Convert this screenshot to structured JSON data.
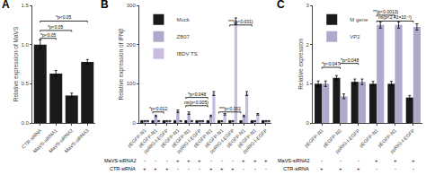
{
  "chart_data": [
    {
      "type": "bar",
      "title": "A",
      "ylabel": "Relative expression of MaVS",
      "categories": [
        "CTR-siRNA",
        "MaVS-siRNA1",
        "MaVS-siRNA2",
        "MaVS-siRNA3"
      ],
      "values": [
        1.0,
        0.63,
        0.35,
        0.78
      ],
      "errors": [
        0.06,
        0.04,
        0.03,
        0.03
      ],
      "color": "#1a1a1a",
      "ylim": [
        0,
        1.5
      ],
      "yticks": [
        {
          "value": 0,
          "label": "0.0"
        },
        0.5,
        {
          "value": 1,
          "label": "1.0"
        },
        1.5
      ],
      "grid": false,
      "annotations": [
        {
          "x1": 0,
          "x2": 1,
          "y": 1.08,
          "text": "*p<0.05"
        },
        {
          "x1": 0,
          "x2": 2,
          "y": 1.18,
          "text": "*p<0.05"
        },
        {
          "x1": 0,
          "x2": 3,
          "y": 1.3,
          "text": "*p<0.05"
        }
      ]
    },
    {
      "type": "bar",
      "title": "B",
      "ylabel": "Relative expression of IFNβ",
      "categories": [
        "pEGFP-N1",
        "pEGFP-N1",
        "ppRIG-I-EGFP",
        "pEGFP-N1",
        "pEGFP-N1",
        "ppRIG-I-EGFP",
        "pEGFP-N1",
        "pEGFP-N1",
        "ppRIG-I-EGFP",
        "pEGFP-N1",
        "pEGFP-N1",
        "ppRIG-I-EGFP"
      ],
      "series": [
        {
          "name": "Mock",
          "color": "#1a1a1a",
          "values": [
            5,
            5,
            5,
            5,
            5,
            5,
            5,
            5,
            5,
            5,
            5,
            5
          ],
          "errors": [
            1,
            1,
            1,
            1,
            1,
            1,
            1,
            1,
            1,
            1,
            1,
            1
          ]
        },
        {
          "name": "ZB07",
          "color": "#b0a8cc",
          "values": [
            5,
            18,
            5,
            30,
            25,
            5,
            18,
            5,
            5,
            18,
            5,
            5
          ],
          "errors": [
            1,
            2,
            1,
            3,
            3,
            1,
            2,
            1,
            1,
            2,
            1,
            1
          ]
        },
        {
          "name": "IBDV TS",
          "color": "#c8bce0",
          "values": [
            5,
            5,
            5,
            5,
            5,
            5,
            75,
            22,
            260,
            75,
            22,
            5
          ],
          "errors": [
            1,
            1,
            1,
            1,
            1,
            1,
            5,
            2,
            8,
            5,
            2,
            1
          ]
        }
      ],
      "rows": [
        {
          "name": "MaVS-siRNA2",
          "values": [
            "-",
            "-",
            "-",
            "+",
            "+",
            "+",
            "-",
            "-",
            "-",
            "+",
            "+",
            "+"
          ]
        },
        {
          "name": "CTR-siRNA",
          "values": [
            "+",
            "+",
            "+",
            "-",
            "-",
            "-",
            "+",
            "+",
            "+",
            "-",
            "-",
            "-"
          ]
        }
      ],
      "ylim": [
        0,
        300
      ],
      "yticks": [
        0,
        100,
        200,
        300
      ],
      "grid": false,
      "legend": "upper left",
      "annotations": [
        {
          "x1": 0.72,
          "x2": 1.72,
          "y": 28,
          "text": "*p<0.012"
        },
        {
          "x1": 3.72,
          "x2": 5.72,
          "y": 44,
          "text": "ns(p<0.005)"
        },
        {
          "x1": 3.72,
          "x2": 5.72,
          "y": 65,
          "text": "*p<0.048"
        },
        {
          "x1": 6.72,
          "x2": 8.72,
          "y": 28,
          "text": "***p<0.001"
        },
        {
          "x1": 7.72,
          "x2": 9.72,
          "y": 250,
          "text": "***(p<0.001)"
        }
      ]
    },
    {
      "type": "bar",
      "title": "C",
      "ylabel": "Relative expression",
      "categories": [
        "pEGFP-N1",
        "pEGFP-N1",
        "ppRIG-I-EGFP",
        "pEGFP-N1",
        "pEGFP-N1",
        "ppRIG-I-EGFP"
      ],
      "series": [
        {
          "name": "M gene",
          "color": "#1a1a1a",
          "values": [
            1.0,
            1.15,
            1.05,
            1.0,
            1.0,
            0.65
          ],
          "errors": [
            0.07,
            0.06,
            0.07,
            0.06,
            0.06,
            0.05
          ]
        },
        {
          "name": "VP2",
          "color": "#b0a8cc",
          "values": [
            1.0,
            0.68,
            1.05,
            2.5,
            2.5,
            2.45
          ],
          "errors": [
            0.07,
            0.06,
            0.07,
            0.08,
            0.08,
            0.08
          ]
        }
      ],
      "rows": [
        {
          "name": "MaVS-siRNA2",
          "values": [
            "-",
            "-",
            "-",
            "+",
            "+",
            "+"
          ]
        },
        {
          "name": "CTR-siRNA",
          "values": [
            "+",
            "+",
            "+",
            "-",
            "-",
            "-"
          ]
        }
      ],
      "ylim": [
        0,
        3
      ],
      "yticks": [
        0,
        1,
        2,
        3
      ],
      "grid": false,
      "legend": "upper left",
      "annotations": [
        {
          "x1": 0.0,
          "x2": 1.0,
          "y": 1.42,
          "text": "*p<0.047"
        },
        {
          "x1": 1.0,
          "x2": 2.0,
          "y": 1.52,
          "text": "*p<0.048"
        },
        {
          "x1": 3.0,
          "x2": 4.0,
          "y": 2.75,
          "text": "**(p<0.0013)"
        },
        {
          "x1": 3.0,
          "x2": 5.0,
          "y": 2.6,
          "text": "ns(p<2.43×10⁻³)"
        }
      ]
    }
  ]
}
